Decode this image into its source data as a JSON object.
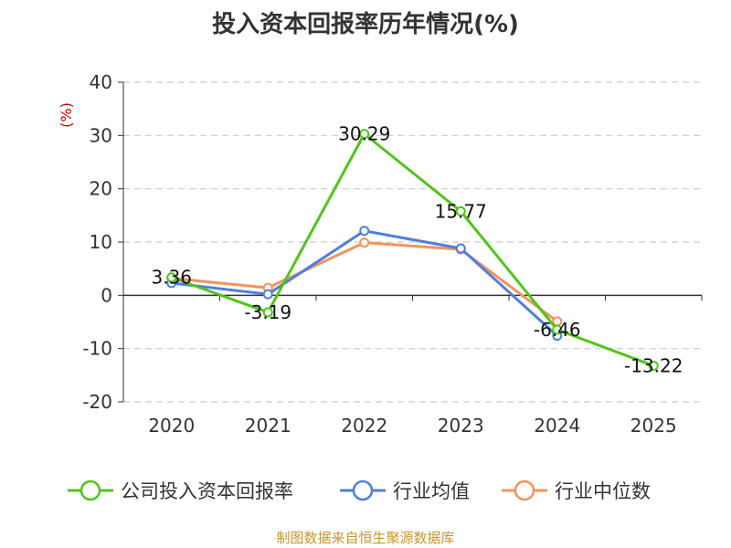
{
  "chart_data": {
    "type": "line",
    "title": "投入资本回报率历年情况(%)",
    "ylabel": "(%)",
    "xlabel": "",
    "categories": [
      "2020",
      "2021",
      "2022",
      "2023",
      "2024",
      "2025"
    ],
    "ylim": [
      -20,
      40
    ],
    "yticks": [
      40,
      30,
      20,
      10,
      0,
      -10,
      -20
    ],
    "grid": true,
    "legend_position": "bottom",
    "series": [
      {
        "name": "公司投入资本回报率",
        "color": "#52c41a",
        "values": [
          3.36,
          -3.19,
          30.29,
          15.77,
          -6.46,
          -13.22
        ],
        "labels": [
          "3.36",
          "-3.19",
          "30.29",
          "15.77",
          "-6.46",
          "-13.22"
        ]
      },
      {
        "name": "行业均值",
        "color": "#4e7fdc",
        "values": [
          2.3,
          0.2,
          12.1,
          8.8,
          -7.6,
          null
        ]
      },
      {
        "name": "行业中位数",
        "color": "#f4935b",
        "values": [
          3.2,
          1.4,
          9.9,
          8.6,
          -4.9,
          null
        ]
      }
    ]
  },
  "source": "制图数据来自恒生聚源数据库"
}
